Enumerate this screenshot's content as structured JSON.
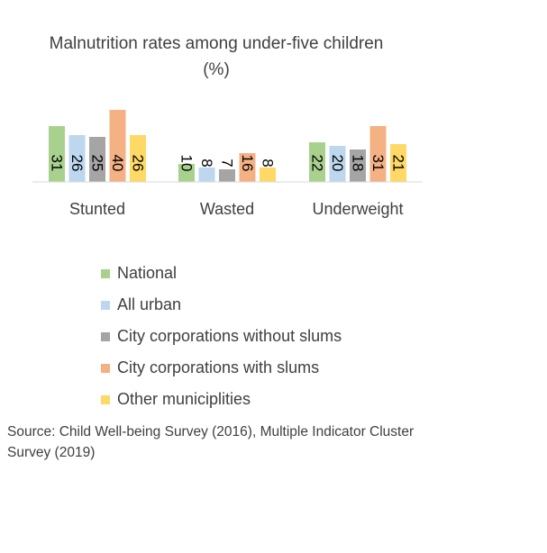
{
  "chart_data": {
    "type": "bar",
    "title": "Malnutrition rates among under-five children (%)",
    "categories": [
      "Stunted",
      "Wasted",
      "Underweight"
    ],
    "series": [
      {
        "name": "National",
        "color": "#a9d18e",
        "values": [
          31,
          10,
          22
        ]
      },
      {
        "name": "All urban",
        "color": "#bdd7ee",
        "values": [
          26,
          8,
          20
        ]
      },
      {
        "name": "City corporations without slums",
        "color": "#a5a5a5",
        "values": [
          25,
          7,
          18
        ]
      },
      {
        "name": "City corporations with slums",
        "color": "#f4b183",
        "values": [
          40,
          16,
          31
        ]
      },
      {
        "name": "Other municiplities",
        "color": "#ffd966",
        "values": [
          26,
          8,
          21
        ]
      }
    ],
    "data_labels": true,
    "data_label_orientation": "vertical",
    "grid": false,
    "legend_position": "bottom",
    "ylim": [
      0,
      40
    ]
  },
  "source_note": "Source: Child Well-being Survey (2016), Multiple Indicator Cluster Survey (2019)"
}
